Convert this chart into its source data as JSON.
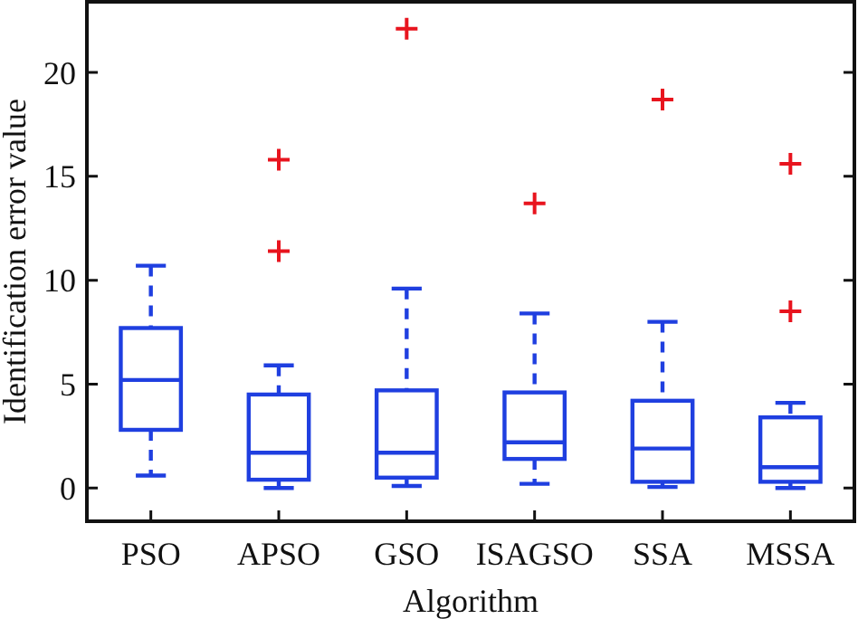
{
  "chart_data": {
    "type": "box",
    "xlabel": "Algorithm",
    "ylabel": "Identification error value",
    "categories": [
      "PSO",
      "APSO",
      "GSO",
      "ISAGSO",
      "SSA",
      "MSSA"
    ],
    "color": "#1f3fe0",
    "marker": "cross",
    "line_style": "dashed",
    "ylim": [
      -1.6,
      23.4
    ],
    "yticks": [
      0,
      5,
      10,
      15,
      20
    ],
    "boxes": [
      {
        "low": 0.6,
        "q1": 2.8,
        "median": 5.2,
        "q3": 7.7,
        "high": 10.7
      },
      {
        "low": 0,
        "q1": 0.4,
        "median": 1.7,
        "q3": 4.5,
        "high": 5.9
      },
      {
        "low": 0.1,
        "q1": 0.5,
        "median": 1.7,
        "q3": 4.7,
        "high": 9.6
      },
      {
        "low": 0.2,
        "q1": 1.4,
        "median": 2.2,
        "q3": 4.6,
        "high": 8.4
      },
      {
        "low": 0.05,
        "q1": 0.3,
        "median": 1.9,
        "q3": 4.2,
        "high": 8.0
      },
      {
        "low": 0,
        "q1": 0.3,
        "median": 1.0,
        "q3": 3.4,
        "high": 4.1
      }
    ],
    "series": [
      {
        "type": "scatter",
        "color": "#e8141e",
        "x": [
          "APSO",
          "APSO",
          "GSO",
          "ISAGSO",
          "SSA",
          "MSSA",
          "MSSA"
        ],
        "values": [
          11.4,
          15.8,
          22.1,
          13.7,
          18.7,
          8.5,
          15.6
        ]
      }
    ]
  }
}
